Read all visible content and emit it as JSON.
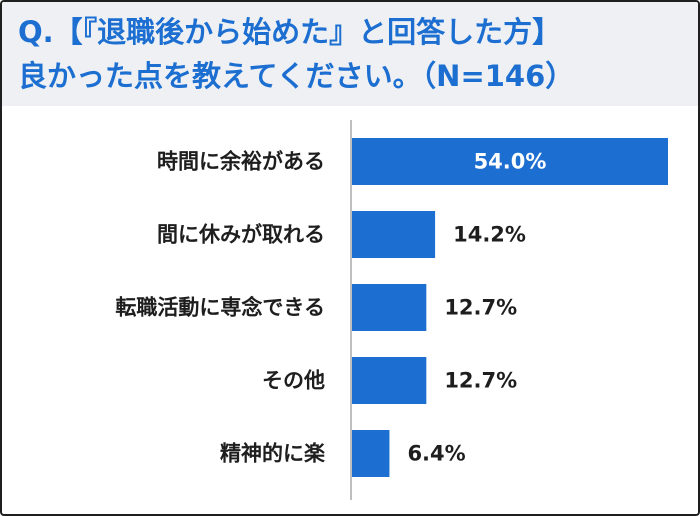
{
  "title": {
    "line1": "Q.【『退職後から始めた』と回答した方】",
    "line2": "良かった点を教えてください。（N=146）"
  },
  "colors": {
    "bar": "#1c6fd1",
    "title": "#1c6fd1",
    "header_bg": "#eef0f4",
    "axis": "#7f7f7f",
    "label": "#1e1e1e"
  },
  "chart_data": {
    "type": "bar",
    "orientation": "horizontal",
    "categories": [
      "時間に余裕がある",
      "間に休みが取れる",
      "転職活動に専念できる",
      "その他",
      "精神的に楽"
    ],
    "values": [
      54.0,
      14.2,
      12.7,
      12.7,
      6.4
    ],
    "value_labels": [
      "54.0%",
      "14.2%",
      "12.7%",
      "12.7%",
      "6.4%"
    ],
    "unit": "%",
    "xlim": [
      0,
      54.0
    ],
    "grid": false,
    "legend": "none"
  }
}
